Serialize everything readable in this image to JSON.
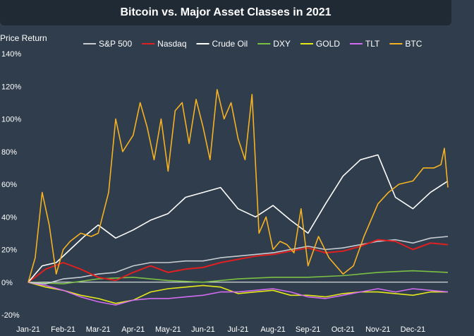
{
  "chart_data": {
    "type": "line",
    "title": "Bitcoin vs. Major Asset Classes in 2021",
    "ylabel": "Price Return",
    "xlabel": "",
    "ylim": [
      -20,
      140
    ],
    "yticks": [
      "-20%",
      "0%",
      "20%",
      "40%",
      "60%",
      "80%",
      "100%",
      "120%",
      "140%"
    ],
    "yticks_values": [
      -20,
      0,
      20,
      40,
      60,
      80,
      100,
      120,
      140
    ],
    "xlim": [
      0,
      12
    ],
    "xticks": [
      "Jan-21",
      "Feb-21",
      "Mar-21",
      "Apr-21",
      "May-21",
      "Jun-21",
      "Jul-21",
      "Aug-21",
      "Sep-21",
      "Oct-21",
      "Nov-21",
      "Dec-21"
    ],
    "xticks_values": [
      0,
      1,
      2,
      3,
      4,
      5,
      6,
      7,
      8,
      9,
      10,
      11
    ],
    "x_unit": "months from Jan-21",
    "grid": false,
    "legend": "top",
    "series": [
      {
        "name": "S&P 500",
        "color": "#c7ccd2",
        "x": [
          0,
          0.5,
          1,
          1.5,
          2,
          2.5,
          3,
          3.5,
          4,
          4.5,
          5,
          5.5,
          6,
          6.5,
          7,
          7.5,
          8,
          8.5,
          9,
          9.5,
          10,
          10.5,
          11,
          11.5,
          12
        ],
        "values": [
          0,
          -1,
          2,
          3,
          5,
          6,
          10,
          12,
          12,
          13,
          13,
          15,
          16,
          17,
          18,
          20,
          22,
          20,
          21,
          23,
          25,
          26,
          24,
          27,
          28
        ]
      },
      {
        "name": "Nasdaq",
        "color": "#e02020",
        "x": [
          0,
          0.5,
          1,
          1.5,
          2,
          2.5,
          3,
          3.5,
          4,
          4.5,
          5,
          5.5,
          6,
          6.5,
          7,
          7.5,
          8,
          8.5,
          9,
          9.5,
          10,
          10.5,
          11,
          11.5,
          12
        ],
        "values": [
          0,
          8,
          12,
          8,
          3,
          1,
          6,
          10,
          6,
          8,
          9,
          12,
          14,
          16,
          17,
          19,
          21,
          18,
          19,
          22,
          26,
          25,
          20,
          24,
          23
        ]
      },
      {
        "name": "Crude Oil",
        "color": "#ffffff",
        "x": [
          0,
          0.4,
          0.8,
          1.2,
          1.6,
          2,
          2.5,
          3,
          3.5,
          4,
          4.5,
          5,
          5.5,
          6,
          6.5,
          7,
          7.5,
          8,
          8.5,
          9,
          9.5,
          10,
          10.5,
          11,
          11.5,
          12
        ],
        "values": [
          0,
          10,
          12,
          20,
          28,
          35,
          27,
          32,
          38,
          42,
          52,
          55,
          58,
          45,
          40,
          47,
          38,
          30,
          48,
          65,
          75,
          78,
          52,
          45,
          55,
          62
        ]
      },
      {
        "name": "DXY",
        "color": "#7bc043",
        "x": [
          0,
          1,
          2,
          3,
          4,
          5,
          6,
          7,
          8,
          9,
          10,
          11,
          12
        ],
        "values": [
          0,
          -1,
          2,
          3,
          1,
          0,
          2,
          3,
          3,
          4,
          6,
          7,
          6
        ]
      },
      {
        "name": "GOLD",
        "color": "#e6e81a",
        "x": [
          0,
          0.5,
          1,
          1.5,
          2,
          2.5,
          3,
          3.5,
          4,
          4.5,
          5,
          5.5,
          6,
          6.5,
          7,
          7.5,
          8,
          8.5,
          9,
          9.5,
          10,
          10.5,
          11,
          11.5,
          12
        ],
        "values": [
          0,
          -3,
          -5,
          -8,
          -10,
          -13,
          -11,
          -6,
          -4,
          -3,
          -2,
          -3,
          -7,
          -6,
          -5,
          -8,
          -8,
          -9,
          -7,
          -6,
          -6,
          -7,
          -8,
          -6,
          -6
        ]
      },
      {
        "name": "TLT",
        "color": "#d36cf0",
        "x": [
          0,
          0.5,
          1,
          1.5,
          2,
          2.5,
          3,
          3.5,
          4,
          4.5,
          5,
          5.5,
          6,
          6.5,
          7,
          7.5,
          8,
          8.5,
          9,
          9.5,
          10,
          10.5,
          11,
          11.5,
          12
        ],
        "values": [
          0,
          -2,
          -5,
          -9,
          -12,
          -14,
          -11,
          -10,
          -10,
          -9,
          -8,
          -6,
          -6,
          -5,
          -4,
          -6,
          -9,
          -10,
          -8,
          -6,
          -4,
          -6,
          -4,
          -5,
          -6
        ]
      },
      {
        "name": "BTC",
        "color": "#f6b222",
        "x": [
          0,
          0.2,
          0.4,
          0.6,
          0.8,
          1,
          1.2,
          1.5,
          1.8,
          2,
          2.3,
          2.5,
          2.7,
          3,
          3.2,
          3.4,
          3.6,
          3.8,
          4,
          4.2,
          4.4,
          4.6,
          4.8,
          5,
          5.2,
          5.4,
          5.6,
          5.8,
          6,
          6.2,
          6.4,
          6.6,
          6.8,
          7,
          7.2,
          7.4,
          7.6,
          7.8,
          8,
          8.3,
          8.6,
          9,
          9.3,
          9.6,
          10,
          10.3,
          10.6,
          11,
          11.3,
          11.6,
          11.8,
          11.9,
          12
        ],
        "values": [
          0,
          15,
          55,
          35,
          5,
          20,
          25,
          30,
          28,
          30,
          55,
          100,
          80,
          90,
          110,
          95,
          75,
          100,
          68,
          105,
          110,
          85,
          112,
          95,
          75,
          118,
          100,
          110,
          88,
          75,
          115,
          30,
          40,
          20,
          25,
          23,
          18,
          45,
          10,
          28,
          15,
          5,
          10,
          28,
          48,
          55,
          60,
          62,
          70,
          70,
          72,
          82,
          58
        ]
      }
    ]
  }
}
